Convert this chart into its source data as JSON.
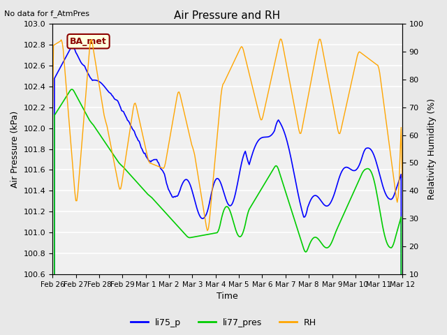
{
  "title": "Air Pressure and RH",
  "top_left_text": "No data for f_AtmPres",
  "annotation_box": "BA_met",
  "xlabel": "Time",
  "ylabel_left": "Air Pressure (kPa)",
  "ylabel_right": "Relativity Humidity (%)",
  "ylim_left": [
    100.6,
    103.0
  ],
  "ylim_right": [
    10,
    100
  ],
  "yticks_left": [
    100.6,
    100.8,
    101.0,
    101.2,
    101.4,
    101.6,
    101.8,
    102.0,
    102.2,
    102.4,
    102.6,
    102.8,
    103.0
  ],
  "yticks_right": [
    10,
    20,
    30,
    40,
    50,
    60,
    70,
    80,
    90,
    100
  ],
  "xtick_labels": [
    "Feb 26",
    "Feb 27",
    "Feb 28",
    "Feb 29",
    "Mar 1",
    "Mar 2",
    "Mar 3",
    "Mar 4",
    "Mar 5",
    "Mar 6",
    "Mar 7",
    "Mar 8",
    "Mar 9",
    "Mar 10",
    "Mar 11",
    "Mar 12"
  ],
  "line_colors": {
    "li75_p": "#0000ff",
    "li77_pres": "#00cc00",
    "RH": "#ffa500"
  },
  "legend_entries": [
    "li75_p",
    "li77_pres",
    "RH"
  ],
  "background_color": "#e8e8e8",
  "plot_bg_color": "#f0f0f0",
  "grid_color": "#ffffff"
}
